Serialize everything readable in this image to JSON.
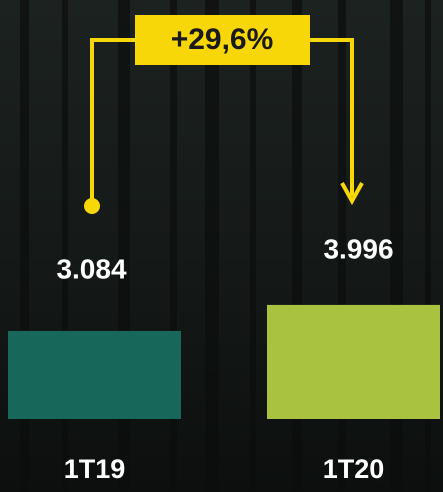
{
  "chart_data": {
    "type": "bar",
    "categories": [
      "1T19",
      "1T20"
    ],
    "values": [
      3084,
      3996
    ],
    "value_labels": [
      "3.084",
      "3.996"
    ],
    "colors": [
      "#17685a",
      "#a9c23f"
    ],
    "ylim": [
      0,
      4000
    ],
    "annotation": "+29,6%",
    "annotation_color": "#f7d708"
  }
}
